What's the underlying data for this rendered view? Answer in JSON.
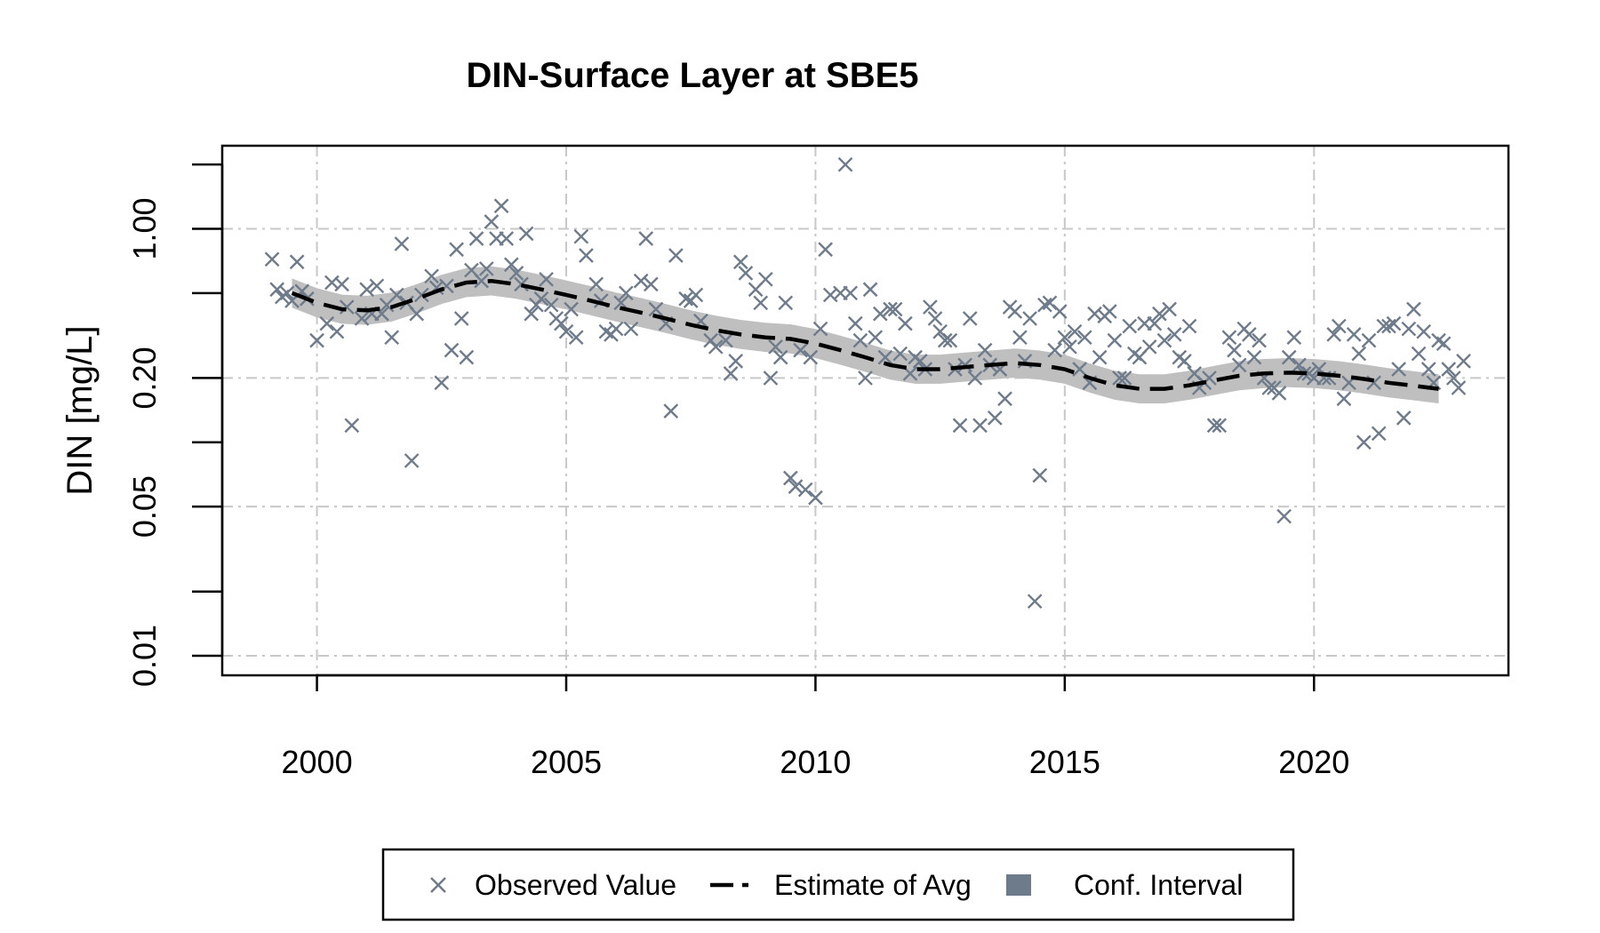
{
  "chart_data": {
    "type": "scatter",
    "title": "DIN-Surface Layer at SBE5",
    "xlabel": "",
    "ylabel": "DIN [mg/L]",
    "x_ticks": [
      2000,
      2005,
      2010,
      2015,
      2020
    ],
    "y_ticks": [
      {
        "value": 0.01,
        "label": "0.01"
      },
      {
        "value": 0.02,
        "label": ""
      },
      {
        "value": 0.05,
        "label": "0.05"
      },
      {
        "value": 0.1,
        "label": ""
      },
      {
        "value": 0.2,
        "label": "0.20"
      },
      {
        "value": 0.5,
        "label": ""
      },
      {
        "value": 1.0,
        "label": "1.00"
      },
      {
        "value": 2.0,
        "label": ""
      }
    ],
    "xlim": [
      1998.1,
      2023.9
    ],
    "ylim": [
      0.0081,
      2.45
    ],
    "y_scale": "log",
    "grid": true,
    "legend_position": "bottom",
    "legend": [
      {
        "label": "Observed Value",
        "marker": "x"
      },
      {
        "label": "Estimate of Avg",
        "marker": "dashed-line"
      },
      {
        "label": "Conf. Interval",
        "marker": "filled-square"
      }
    ],
    "colors": {
      "observed": "#6e7b8b",
      "estimate": "#000000",
      "ci": "#bfbfbf",
      "ci_legend": "#6e7b8b",
      "grid": "#c8c8c8"
    },
    "series": [
      {
        "name": "Observed Value",
        "points": [
          [
            1999.1,
            0.72
          ],
          [
            1999.2,
            0.52
          ],
          [
            1999.3,
            0.48
          ],
          [
            1999.4,
            0.5
          ],
          [
            1999.5,
            0.46
          ],
          [
            1999.6,
            0.7
          ],
          [
            1999.7,
            0.51
          ],
          [
            1999.8,
            0.47
          ],
          [
            2000.0,
            0.3
          ],
          [
            2000.2,
            0.36
          ],
          [
            2000.3,
            0.56
          ],
          [
            2000.4,
            0.33
          ],
          [
            2000.5,
            0.55
          ],
          [
            2000.6,
            0.43
          ],
          [
            2000.7,
            0.12
          ],
          [
            2000.9,
            0.38
          ],
          [
            2001.0,
            0.52
          ],
          [
            2001.1,
            0.4
          ],
          [
            2001.2,
            0.54
          ],
          [
            2001.3,
            0.4
          ],
          [
            2001.4,
            0.44
          ],
          [
            2001.5,
            0.31
          ],
          [
            2001.6,
            0.49
          ],
          [
            2001.7,
            0.85
          ],
          [
            2001.8,
            0.45
          ],
          [
            2001.9,
            0.082
          ],
          [
            2002.0,
            0.4
          ],
          [
            2002.1,
            0.49
          ],
          [
            2002.3,
            0.6
          ],
          [
            2002.4,
            0.53
          ],
          [
            2002.5,
            0.19
          ],
          [
            2002.6,
            0.54
          ],
          [
            2002.7,
            0.27
          ],
          [
            2002.8,
            0.8
          ],
          [
            2002.9,
            0.38
          ],
          [
            2003.0,
            0.25
          ],
          [
            2003.1,
            0.64
          ],
          [
            2003.2,
            0.9
          ],
          [
            2003.3,
            0.57
          ],
          [
            2003.4,
            0.65
          ],
          [
            2003.5,
            1.08
          ],
          [
            2003.6,
            0.9
          ],
          [
            2003.7,
            1.28
          ],
          [
            2003.8,
            0.9
          ],
          [
            2003.9,
            0.68
          ],
          [
            2004.0,
            0.62
          ],
          [
            2004.1,
            0.55
          ],
          [
            2004.2,
            0.95
          ],
          [
            2004.3,
            0.4
          ],
          [
            2004.4,
            0.44
          ],
          [
            2004.5,
            0.47
          ],
          [
            2004.6,
            0.58
          ],
          [
            2004.7,
            0.44
          ],
          [
            2004.8,
            0.38
          ],
          [
            2004.9,
            0.36
          ],
          [
            2005.0,
            0.33
          ],
          [
            2005.1,
            0.42
          ],
          [
            2005.2,
            0.31
          ],
          [
            2005.3,
            0.92
          ],
          [
            2005.4,
            0.75
          ],
          [
            2005.6,
            0.55
          ],
          [
            2005.7,
            0.46
          ],
          [
            2005.8,
            0.33
          ],
          [
            2005.9,
            0.32
          ],
          [
            2006.0,
            0.34
          ],
          [
            2006.1,
            0.45
          ],
          [
            2006.2,
            0.5
          ],
          [
            2006.3,
            0.34
          ],
          [
            2006.5,
            0.57
          ],
          [
            2006.6,
            0.9
          ],
          [
            2006.7,
            0.55
          ],
          [
            2006.8,
            0.42
          ],
          [
            2007.0,
            0.36
          ],
          [
            2007.1,
            0.14
          ],
          [
            2007.2,
            0.75
          ],
          [
            2007.4,
            0.47
          ],
          [
            2007.5,
            0.46
          ],
          [
            2007.6,
            0.49
          ],
          [
            2007.7,
            0.37
          ],
          [
            2007.9,
            0.3
          ],
          [
            2008.0,
            0.28
          ],
          [
            2008.2,
            0.3
          ],
          [
            2008.3,
            0.21
          ],
          [
            2008.4,
            0.24
          ],
          [
            2008.5,
            0.7
          ],
          [
            2008.6,
            0.62
          ],
          [
            2008.8,
            0.52
          ],
          [
            2008.9,
            0.45
          ],
          [
            2009.0,
            0.58
          ],
          [
            2009.1,
            0.2
          ],
          [
            2009.2,
            0.28
          ],
          [
            2009.3,
            0.25
          ],
          [
            2009.4,
            0.45
          ],
          [
            2009.5,
            0.068
          ],
          [
            2009.6,
            0.062
          ],
          [
            2009.7,
            0.27
          ],
          [
            2009.8,
            0.06
          ],
          [
            2009.9,
            0.25
          ],
          [
            2010.0,
            0.055
          ],
          [
            2010.1,
            0.34
          ],
          [
            2010.2,
            0.8
          ],
          [
            2010.3,
            0.49
          ],
          [
            2010.5,
            0.5
          ],
          [
            2010.6,
            2.0
          ],
          [
            2010.7,
            0.5
          ],
          [
            2010.8,
            0.36
          ],
          [
            2010.9,
            0.3
          ],
          [
            2011.0,
            0.2
          ],
          [
            2011.1,
            0.52
          ],
          [
            2011.2,
            0.31
          ],
          [
            2011.3,
            0.4
          ],
          [
            2011.4,
            0.25
          ],
          [
            2011.5,
            0.42
          ],
          [
            2011.6,
            0.42
          ],
          [
            2011.7,
            0.26
          ],
          [
            2011.8,
            0.36
          ],
          [
            2011.9,
            0.21
          ],
          [
            2012.0,
            0.25
          ],
          [
            2012.1,
            0.24
          ],
          [
            2012.2,
            0.22
          ],
          [
            2012.3,
            0.43
          ],
          [
            2012.4,
            0.38
          ],
          [
            2012.5,
            0.33
          ],
          [
            2012.6,
            0.3
          ],
          [
            2012.7,
            0.3
          ],
          [
            2012.8,
            0.22
          ],
          [
            2012.9,
            0.12
          ],
          [
            2013.0,
            0.23
          ],
          [
            2013.1,
            0.38
          ],
          [
            2013.2,
            0.2
          ],
          [
            2013.3,
            0.12
          ],
          [
            2013.4,
            0.27
          ],
          [
            2013.5,
            0.23
          ],
          [
            2013.6,
            0.13
          ],
          [
            2013.7,
            0.22
          ],
          [
            2013.8,
            0.16
          ],
          [
            2013.9,
            0.43
          ],
          [
            2014.0,
            0.41
          ],
          [
            2014.1,
            0.31
          ],
          [
            2014.2,
            0.24
          ],
          [
            2014.3,
            0.38
          ],
          [
            2014.4,
            0.018
          ],
          [
            2014.5,
            0.07
          ],
          [
            2014.6,
            0.44
          ],
          [
            2014.7,
            0.45
          ],
          [
            2014.8,
            0.27
          ],
          [
            2014.9,
            0.41
          ],
          [
            2015.0,
            0.31
          ],
          [
            2015.1,
            0.28
          ],
          [
            2015.2,
            0.33
          ],
          [
            2015.3,
            0.22
          ],
          [
            2015.4,
            0.31
          ],
          [
            2015.5,
            0.19
          ],
          [
            2015.6,
            0.4
          ],
          [
            2015.7,
            0.25
          ],
          [
            2015.8,
            0.39
          ],
          [
            2015.9,
            0.41
          ],
          [
            2016.0,
            0.3
          ],
          [
            2016.1,
            0.2
          ],
          [
            2016.2,
            0.2
          ],
          [
            2016.3,
            0.35
          ],
          [
            2016.4,
            0.26
          ],
          [
            2016.5,
            0.25
          ],
          [
            2016.6,
            0.36
          ],
          [
            2016.7,
            0.28
          ],
          [
            2016.8,
            0.36
          ],
          [
            2016.9,
            0.4
          ],
          [
            2017.0,
            0.3
          ],
          [
            2017.1,
            0.42
          ],
          [
            2017.2,
            0.32
          ],
          [
            2017.3,
            0.25
          ],
          [
            2017.4,
            0.24
          ],
          [
            2017.5,
            0.35
          ],
          [
            2017.6,
            0.21
          ],
          [
            2017.7,
            0.18
          ],
          [
            2017.8,
            0.19
          ],
          [
            2017.9,
            0.2
          ],
          [
            2018.0,
            0.12
          ],
          [
            2018.1,
            0.12
          ],
          [
            2018.3,
            0.31
          ],
          [
            2018.4,
            0.27
          ],
          [
            2018.5,
            0.23
          ],
          [
            2018.6,
            0.34
          ],
          [
            2018.7,
            0.32
          ],
          [
            2018.8,
            0.25
          ],
          [
            2018.9,
            0.3
          ],
          [
            2019.0,
            0.2
          ],
          [
            2019.1,
            0.18
          ],
          [
            2019.2,
            0.18
          ],
          [
            2019.3,
            0.17
          ],
          [
            2019.4,
            0.045
          ],
          [
            2019.5,
            0.25
          ],
          [
            2019.6,
            0.31
          ],
          [
            2019.7,
            0.23
          ],
          [
            2019.8,
            0.21
          ],
          [
            2019.9,
            0.21
          ],
          [
            2020.0,
            0.2
          ],
          [
            2020.1,
            0.22
          ],
          [
            2020.2,
            0.2
          ],
          [
            2020.3,
            0.2
          ],
          [
            2020.4,
            0.32
          ],
          [
            2020.5,
            0.35
          ],
          [
            2020.6,
            0.16
          ],
          [
            2020.7,
            0.19
          ],
          [
            2020.8,
            0.32
          ],
          [
            2020.9,
            0.26
          ],
          [
            2021.0,
            0.1
          ],
          [
            2021.1,
            0.3
          ],
          [
            2021.2,
            0.19
          ],
          [
            2021.3,
            0.11
          ],
          [
            2021.4,
            0.35
          ],
          [
            2021.5,
            0.35
          ],
          [
            2021.6,
            0.36
          ],
          [
            2021.7,
            0.22
          ],
          [
            2021.8,
            0.13
          ],
          [
            2021.9,
            0.34
          ],
          [
            2022.0,
            0.42
          ],
          [
            2022.1,
            0.26
          ],
          [
            2022.2,
            0.33
          ],
          [
            2022.3,
            0.22
          ],
          [
            2022.4,
            0.19
          ],
          [
            2022.5,
            0.3
          ],
          [
            2022.6,
            0.29
          ],
          [
            2022.7,
            0.22
          ],
          [
            2022.8,
            0.2
          ],
          [
            2022.9,
            0.18
          ],
          [
            2023.0,
            0.24
          ]
        ]
      },
      {
        "name": "Estimate of Avg",
        "points": [
          [
            1999.5,
            0.5
          ],
          [
            2000.0,
            0.45
          ],
          [
            2000.5,
            0.42
          ],
          [
            2001.0,
            0.415
          ],
          [
            2001.5,
            0.43
          ],
          [
            2002.0,
            0.47
          ],
          [
            2002.5,
            0.52
          ],
          [
            2003.0,
            0.56
          ],
          [
            2003.5,
            0.57
          ],
          [
            2004.0,
            0.55
          ],
          [
            2004.5,
            0.52
          ],
          [
            2005.0,
            0.49
          ],
          [
            2005.5,
            0.46
          ],
          [
            2006.0,
            0.43
          ],
          [
            2006.5,
            0.405
          ],
          [
            2007.0,
            0.38
          ],
          [
            2007.5,
            0.355
          ],
          [
            2008.0,
            0.335
          ],
          [
            2008.5,
            0.32
          ],
          [
            2009.0,
            0.31
          ],
          [
            2009.5,
            0.305
          ],
          [
            2010.0,
            0.29
          ],
          [
            2010.5,
            0.27
          ],
          [
            2011.0,
            0.25
          ],
          [
            2011.5,
            0.23
          ],
          [
            2012.0,
            0.22
          ],
          [
            2012.5,
            0.22
          ],
          [
            2013.0,
            0.225
          ],
          [
            2013.5,
            0.23
          ],
          [
            2014.0,
            0.235
          ],
          [
            2014.5,
            0.23
          ],
          [
            2015.0,
            0.22
          ],
          [
            2015.5,
            0.2
          ],
          [
            2016.0,
            0.185
          ],
          [
            2016.5,
            0.178
          ],
          [
            2017.0,
            0.178
          ],
          [
            2017.5,
            0.185
          ],
          [
            2018.0,
            0.195
          ],
          [
            2018.5,
            0.205
          ],
          [
            2019.0,
            0.21
          ],
          [
            2019.5,
            0.212
          ],
          [
            2020.0,
            0.21
          ],
          [
            2020.5,
            0.205
          ],
          [
            2021.0,
            0.198
          ],
          [
            2021.5,
            0.19
          ],
          [
            2022.0,
            0.184
          ],
          [
            2022.5,
            0.178
          ]
        ]
      },
      {
        "name": "Conf. Interval",
        "ci_ratio": 1.17
      }
    ]
  }
}
